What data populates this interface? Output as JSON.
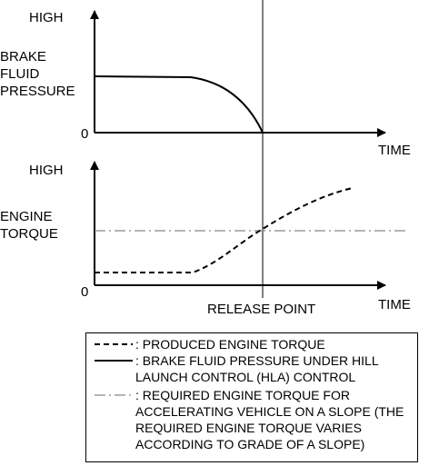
{
  "upper_panel": {
    "y_high": "HIGH",
    "y_label_lines": [
      "BRAKE",
      "FLUID",
      "PRESSURE"
    ],
    "y_zero": "0",
    "x_label": "TIME"
  },
  "lower_panel": {
    "y_high": "HIGH",
    "y_label_lines": [
      "ENGINE",
      "TORQUE"
    ],
    "y_zero": "0",
    "x_label": "TIME",
    "release_point": "RELEASE POINT"
  },
  "legend": {
    "items": [
      {
        "style": "dashed",
        "text": ": PRODUCED ENGINE TORQUE"
      },
      {
        "style": "solid",
        "text": ": BRAKE FLUID PRESSURE UNDER HILL\nLAUNCH CONTROL (HLA) CONTROL"
      },
      {
        "style": "dash-dot",
        "text": ": REQUIRED ENGINE TORQUE FOR\nACCELERATING VEHICLE ON A SLOPE (THE\nREQUIRED ENGINE TORQUE VARIES\nACCORDING TO GRADE OF A SLOPE)"
      }
    ]
  },
  "colors": {
    "ink": "#000000",
    "reference_line": "#888888"
  }
}
